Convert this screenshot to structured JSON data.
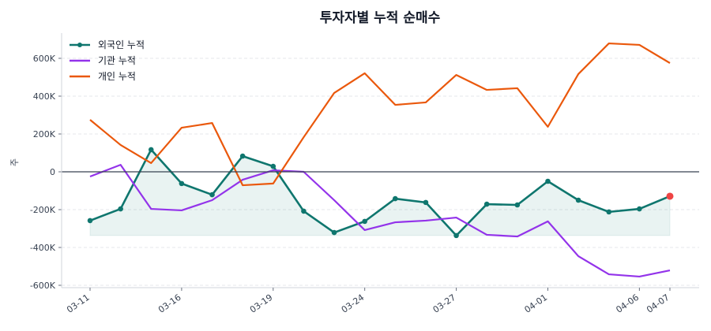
{
  "chart_data": {
    "type": "line",
    "title": "투자자별 누적 순매수",
    "ylabel": "주",
    "xlabel": "",
    "ylim": [
      -600000,
      700000
    ],
    "yticks": [
      -600000,
      -400000,
      -200000,
      0,
      200000,
      400000,
      600000
    ],
    "ytick_labels": [
      "-600K",
      "-400K",
      "-200K",
      "0",
      "200K",
      "400K",
      "600K"
    ],
    "x": [
      "03-11",
      "03-12",
      "03-13",
      "03-16",
      "03-17",
      "03-18",
      "03-19",
      "03-20",
      "03-23",
      "03-24",
      "03-25",
      "03-26",
      "03-27",
      "03-30",
      "03-31",
      "04-01",
      "04-02",
      "04-03",
      "04-06",
      "04-07"
    ],
    "xtick_labels": [
      "03-11",
      "03-16",
      "03-19",
      "03-24",
      "03-27",
      "04-01",
      "04-06",
      "04-07"
    ],
    "grid": "horizontal dashed",
    "legend": "top-left",
    "series": [
      {
        "name": "외국인 누적",
        "color": "#0f766e",
        "markers": true,
        "fill": true,
        "values": [
          -258000,
          -196000,
          117000,
          -62000,
          -121000,
          83000,
          29000,
          -208000,
          -321000,
          -262000,
          -142000,
          -162000,
          -337000,
          -171000,
          -175000,
          -50000,
          -150000,
          -212000,
          -196000,
          -129000
        ]
      },
      {
        "name": "기관 누적",
        "color": "#9333ea",
        "markers": false,
        "values": [
          -25000,
          37000,
          -196000,
          -204000,
          -150000,
          -42000,
          8000,
          0,
          -150000,
          -308000,
          -267000,
          -258000,
          -242000,
          -333000,
          -342000,
          -262000,
          -446000,
          -542000,
          -554000,
          -521000
        ]
      },
      {
        "name": "개인 누적",
        "color": "#ea580c",
        "markers": false,
        "values": [
          275000,
          142000,
          46000,
          233000,
          258000,
          -71000,
          -62000,
          183000,
          417000,
          521000,
          354000,
          367000,
          512000,
          433000,
          442000,
          238000,
          517000,
          679000,
          671000,
          575000
        ]
      }
    ],
    "last_point_highlight_color": "#ef4444"
  }
}
